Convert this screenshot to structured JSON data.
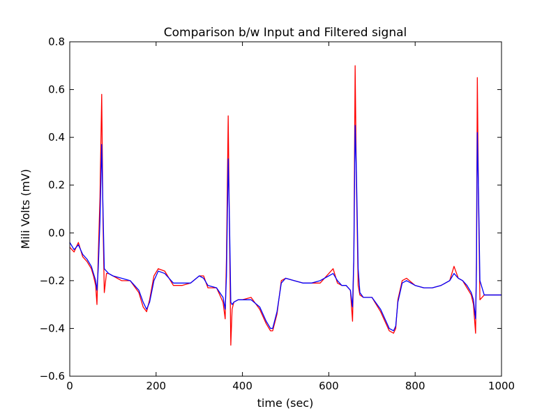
{
  "chart_data": {
    "type": "line",
    "title": "Comparison b/w Input and Filtered signal",
    "xlabel": "time (sec)",
    "ylabel": "Mili Volts (mV)",
    "xlim": [
      0,
      1000
    ],
    "ylim": [
      -0.6,
      0.8
    ],
    "xticks": [
      0,
      200,
      400,
      600,
      800,
      1000
    ],
    "xtick_labels": [
      "0",
      "200",
      "400",
      "600",
      "800",
      "1000"
    ],
    "yticks": [
      -0.6,
      -0.4,
      -0.2,
      0.0,
      0.2,
      0.4,
      0.6,
      0.8
    ],
    "ytick_labels": [
      "−0.6",
      "−0.4",
      "−0.2",
      "0.0",
      "0.2",
      "0.4",
      "0.6",
      "0.8"
    ],
    "grid": false,
    "series": [
      {
        "color": "#ff0000",
        "x": [
          0,
          10,
          20,
          30,
          40,
          50,
          55,
          60,
          63,
          66,
          70,
          74,
          77,
          80,
          85,
          90,
          100,
          120,
          140,
          160,
          170,
          178,
          185,
          195,
          205,
          220,
          240,
          260,
          280,
          300,
          310,
          320,
          340,
          355,
          360,
          363,
          367,
          370,
          373,
          376,
          380,
          390,
          400,
          420,
          440,
          455,
          465,
          470,
          480,
          490,
          500,
          520,
          540,
          560,
          580,
          600,
          610,
          620,
          630,
          640,
          650,
          655,
          658,
          661,
          664,
          668,
          672,
          680,
          700,
          720,
          740,
          750,
          755,
          760,
          770,
          780,
          800,
          820,
          840,
          860,
          880,
          890,
          900,
          910,
          920,
          930,
          935,
          940,
          942,
          944,
          947,
          950,
          960,
          980,
          1000
        ],
        "y": [
          -0.06,
          -0.08,
          -0.04,
          -0.1,
          -0.12,
          -0.15,
          -0.18,
          -0.22,
          -0.3,
          -0.1,
          0.15,
          0.58,
          0.05,
          -0.25,
          -0.17,
          -0.17,
          -0.18,
          -0.2,
          -0.2,
          -0.25,
          -0.31,
          -0.33,
          -0.28,
          -0.18,
          -0.15,
          -0.16,
          -0.22,
          -0.22,
          -0.21,
          -0.18,
          -0.18,
          -0.23,
          -0.23,
          -0.29,
          -0.36,
          -0.1,
          0.49,
          0.0,
          -0.47,
          -0.32,
          -0.29,
          -0.28,
          -0.28,
          -0.27,
          -0.32,
          -0.38,
          -0.41,
          -0.41,
          -0.34,
          -0.2,
          -0.19,
          -0.2,
          -0.21,
          -0.21,
          -0.21,
          -0.17,
          -0.15,
          -0.21,
          -0.22,
          -0.22,
          -0.24,
          -0.37,
          -0.1,
          0.7,
          0.2,
          -0.22,
          -0.26,
          -0.27,
          -0.27,
          -0.33,
          -0.41,
          -0.42,
          -0.4,
          -0.28,
          -0.2,
          -0.19,
          -0.22,
          -0.23,
          -0.23,
          -0.22,
          -0.2,
          -0.14,
          -0.19,
          -0.2,
          -0.23,
          -0.26,
          -0.3,
          -0.42,
          -0.1,
          0.65,
          0.1,
          -0.28,
          -0.26,
          -0.26,
          -0.26
        ]
      },
      {
        "color": "#0000ff",
        "x": [
          0,
          10,
          20,
          30,
          40,
          50,
          55,
          60,
          63,
          66,
          70,
          74,
          77,
          80,
          85,
          90,
          100,
          120,
          140,
          160,
          170,
          178,
          185,
          195,
          205,
          220,
          240,
          260,
          280,
          300,
          310,
          320,
          340,
          355,
          360,
          363,
          367,
          370,
          373,
          376,
          380,
          390,
          400,
          420,
          440,
          455,
          465,
          470,
          480,
          490,
          500,
          520,
          540,
          560,
          580,
          600,
          610,
          620,
          630,
          640,
          650,
          655,
          658,
          661,
          664,
          668,
          672,
          680,
          700,
          720,
          740,
          750,
          755,
          760,
          770,
          780,
          800,
          820,
          840,
          860,
          880,
          890,
          900,
          910,
          920,
          930,
          935,
          940,
          942,
          944,
          947,
          950,
          960,
          980,
          1000
        ],
        "y": [
          -0.04,
          -0.07,
          -0.05,
          -0.09,
          -0.11,
          -0.14,
          -0.17,
          -0.2,
          -0.24,
          -0.15,
          0.05,
          0.37,
          0.1,
          -0.15,
          -0.16,
          -0.17,
          -0.18,
          -0.19,
          -0.2,
          -0.24,
          -0.29,
          -0.32,
          -0.29,
          -0.2,
          -0.16,
          -0.17,
          -0.21,
          -0.21,
          -0.21,
          -0.18,
          -0.19,
          -0.22,
          -0.23,
          -0.27,
          -0.32,
          -0.18,
          0.31,
          0.05,
          -0.29,
          -0.3,
          -0.29,
          -0.28,
          -0.28,
          -0.28,
          -0.31,
          -0.37,
          -0.4,
          -0.4,
          -0.33,
          -0.21,
          -0.19,
          -0.2,
          -0.21,
          -0.21,
          -0.2,
          -0.18,
          -0.17,
          -0.2,
          -0.22,
          -0.22,
          -0.24,
          -0.31,
          -0.1,
          0.45,
          0.25,
          -0.15,
          -0.25,
          -0.27,
          -0.27,
          -0.32,
          -0.4,
          -0.41,
          -0.39,
          -0.29,
          -0.21,
          -0.2,
          -0.22,
          -0.23,
          -0.23,
          -0.22,
          -0.2,
          -0.17,
          -0.19,
          -0.2,
          -0.22,
          -0.25,
          -0.28,
          -0.36,
          -0.15,
          0.42,
          0.15,
          -0.2,
          -0.26,
          -0.26,
          -0.26
        ]
      }
    ]
  }
}
